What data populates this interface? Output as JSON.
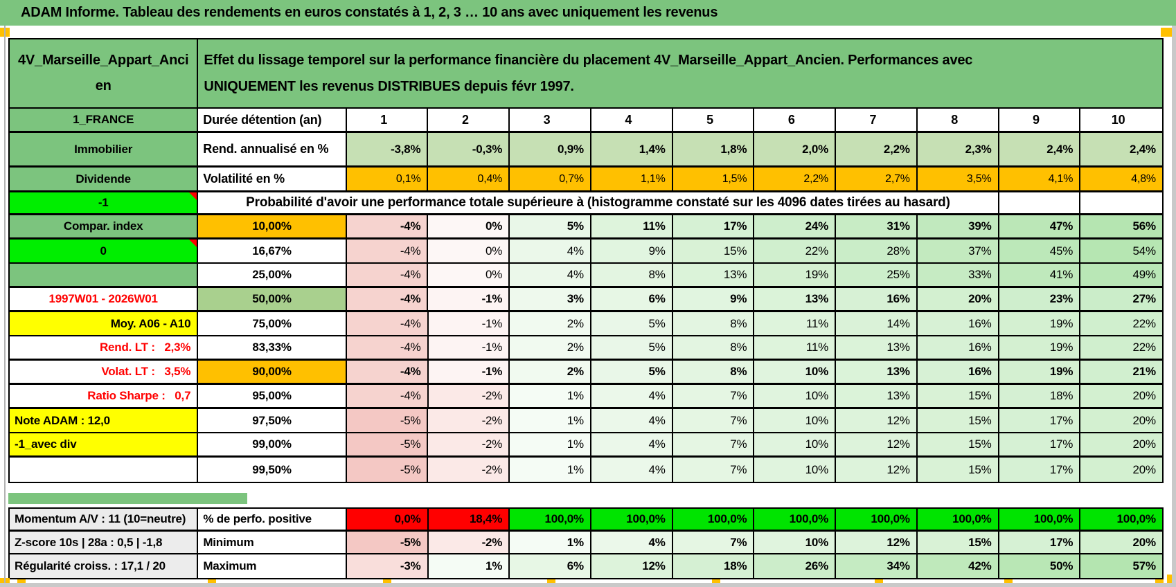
{
  "banner_title": "ADAM Informe. Tableau des rendements en euros constatés à 1, 2, 3 … 10 ans avec uniquement les revenus",
  "header": {
    "asset_name": "4V_Marseille_Appart_Ancien",
    "description": "Effet du lissage temporel sur la performance financière du placement 4V_Marseille_Appart_Ancien. Performances avec\nUNIQUEMENT les revenus DISTRIBUES depuis févr 1997."
  },
  "columns": {
    "country": "1_FRANCE",
    "duration_header": "Durée détention (an)",
    "years": [
      "1",
      "2",
      "3",
      "4",
      "5",
      "6",
      "7",
      "8",
      "9",
      "10"
    ]
  },
  "rows": {
    "annualized": {
      "left": "Immobilier",
      "label": "Rend. annualisé en %",
      "values": [
        "-3,8%",
        "-0,3%",
        "0,9%",
        "1,4%",
        "1,8%",
        "2,0%",
        "2,2%",
        "2,3%",
        "2,4%",
        "2,4%"
      ]
    },
    "volatility": {
      "left": "Dividende",
      "label": "Volatilité en %",
      "values": [
        "0,1%",
        "0,4%",
        "0,7%",
        "1,1%",
        "1,5%",
        "2,2%",
        "2,7%",
        "3,5%",
        "4,1%",
        "4,8%"
      ]
    },
    "probability_header": {
      "left": "-1",
      "label": "Probabilité d'avoir une performance totale supérieure à (histogramme constaté sur les 4096 dates tirées au hasard)"
    },
    "percentiles": [
      {
        "left": "Compar. index",
        "left_style": "green",
        "p": "10,00%",
        "highlight": "orange",
        "bold": true,
        "thick": true,
        "values": [
          -4,
          0,
          5,
          11,
          17,
          24,
          31,
          39,
          47,
          56
        ]
      },
      {
        "left": "0",
        "left_style": "bright",
        "note": true,
        "p": "16,67%",
        "values": [
          -4,
          0,
          4,
          9,
          15,
          22,
          28,
          37,
          45,
          54
        ]
      },
      {
        "left": "",
        "left_style": "green",
        "p": "25,00%",
        "thick": true,
        "values": [
          -4,
          0,
          4,
          8,
          13,
          19,
          25,
          33,
          41,
          49
        ]
      },
      {
        "left": "1997W01 - 2026W01",
        "left_style": "period",
        "p": "50,00%",
        "highlight": "green",
        "bold": true,
        "thick": true,
        "values": [
          -4,
          -1,
          3,
          6,
          9,
          13,
          16,
          20,
          23,
          27
        ]
      },
      {
        "left": "Moy. A06 - A10",
        "left_style": "yellow_right",
        "p": "75,00%",
        "values": [
          -4,
          -1,
          2,
          5,
          8,
          11,
          14,
          16,
          19,
          22
        ]
      },
      {
        "left": "Rend. LT :   2,3%",
        "left_style": "red_right",
        "p": "83,33%",
        "thick": true,
        "values": [
          -4,
          -1,
          2,
          5,
          8,
          11,
          13,
          16,
          19,
          22
        ]
      },
      {
        "left": "Volat. LT :   3,5%",
        "left_style": "red_right",
        "p": "90,00%",
        "highlight": "orange",
        "bold": true,
        "thick": true,
        "values": [
          -4,
          -1,
          2,
          5,
          8,
          10,
          13,
          16,
          19,
          21
        ]
      },
      {
        "left": "Ratio Sharpe :   0,7",
        "left_style": "red_right",
        "p": "95,00%",
        "thick": true,
        "values": [
          -4,
          -2,
          1,
          4,
          7,
          10,
          13,
          15,
          18,
          20
        ]
      },
      {
        "left": "Note ADAM : 12,0",
        "left_style": "yellow_left",
        "p": "97,50%",
        "values": [
          -5,
          -2,
          1,
          4,
          7,
          10,
          12,
          15,
          17,
          20
        ]
      },
      {
        "left": "-1_avec div",
        "left_style": "yellow_left",
        "p": "99,00%",
        "thick": true,
        "values": [
          -5,
          -2,
          1,
          4,
          7,
          10,
          12,
          15,
          17,
          20
        ]
      },
      {
        "left": "",
        "left_style": "white",
        "p": "99,50%",
        "values": [
          -5,
          -2,
          1,
          4,
          7,
          10,
          12,
          15,
          17,
          20
        ]
      }
    ]
  },
  "stats": [
    {
      "left": "Momentum A/V : 11 (10=neutre)",
      "label": "% de perfo. positive",
      "thick": true,
      "cells": [
        {
          "text": "0,0%",
          "bg": "red"
        },
        {
          "text": "18,4%",
          "bg": "red"
        },
        {
          "text": "100,0%",
          "bg": "green"
        },
        {
          "text": "100,0%",
          "bg": "green"
        },
        {
          "text": "100,0%",
          "bg": "green"
        },
        {
          "text": "100,0%",
          "bg": "green"
        },
        {
          "text": "100,0%",
          "bg": "green"
        },
        {
          "text": "100,0%",
          "bg": "green"
        },
        {
          "text": "100,0%",
          "bg": "green"
        },
        {
          "text": "100,0%",
          "bg": "green"
        }
      ]
    },
    {
      "left": "Z-score 10s | 28a : 0,5 | -1,8",
      "label": "Minimum",
      "values": [
        -5,
        -2,
        1,
        4,
        7,
        10,
        12,
        15,
        17,
        20
      ]
    },
    {
      "left": "Régularité croiss. : 17,1 / 20",
      "label": "Maximum",
      "values": [
        -3,
        1,
        6,
        12,
        18,
        26,
        34,
        42,
        50,
        57
      ]
    }
  ],
  "colors": {
    "banner_green": "#7cc47e",
    "bright_green": "#00ee00",
    "cell_green": "#00e400",
    "orange": "#ffc000",
    "light_green": "#c6e0b4",
    "mid_green": "#a9d08e",
    "yellow": "#ffff00",
    "red": "#ff0000",
    "label_gray": "#ececec",
    "neg_scale": "#f3c2bd",
    "pos_scale": "#b4e5b0"
  }
}
